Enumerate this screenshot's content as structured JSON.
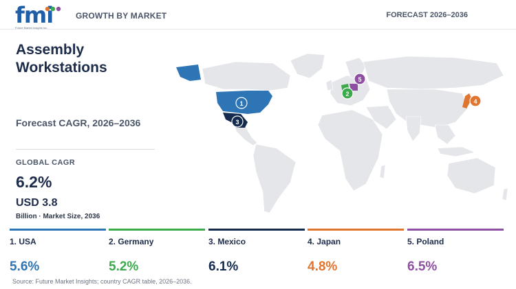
{
  "header": {
    "logo_text": "fmi",
    "logo_tagline": "Future Market Insights Inc.",
    "section_label": "GROWTH BY MARKET",
    "forecast_label": "FORECAST 2026–2036"
  },
  "summary": {
    "title": "Assembly Workstations",
    "subtitle": "Forecast CAGR, 2026–2036",
    "global_label": "GLOBAL CAGR",
    "global_value": "6.2%",
    "market_value": "USD 3.8",
    "market_note": "Billion · Market Size, 2036"
  },
  "chart_data": {
    "type": "map",
    "title": "Assembly Workstations",
    "subtitle": "Forecast CAGR, 2026–2036",
    "global_cagr_percent": 6.2,
    "market_size_usd_billion_2036": 3.8,
    "series": [
      {
        "rank": 1,
        "label": "1. USA",
        "country": "USA",
        "cagr": 5.6,
        "display": "5.6%",
        "color": "#2e75b6"
      },
      {
        "rank": 2,
        "label": "2. Germany",
        "country": "Germany",
        "cagr": 5.2,
        "display": "5.2%",
        "color": "#3aaa4a"
      },
      {
        "rank": 3,
        "label": "3. Mexico",
        "country": "Mexico",
        "cagr": 6.1,
        "display": "6.1%",
        "color": "#142a4e"
      },
      {
        "rank": 4,
        "label": "4. Japan",
        "country": "Japan",
        "cagr": 4.8,
        "display": "4.8%",
        "color": "#e07530"
      },
      {
        "rank": 5,
        "label": "5. Poland",
        "country": "Poland",
        "cagr": 6.5,
        "display": "6.5%",
        "color": "#8e4fa3"
      }
    ]
  },
  "footer": {
    "source": "Source: Future Market Insights; country CAGR table, 2026–2036."
  }
}
